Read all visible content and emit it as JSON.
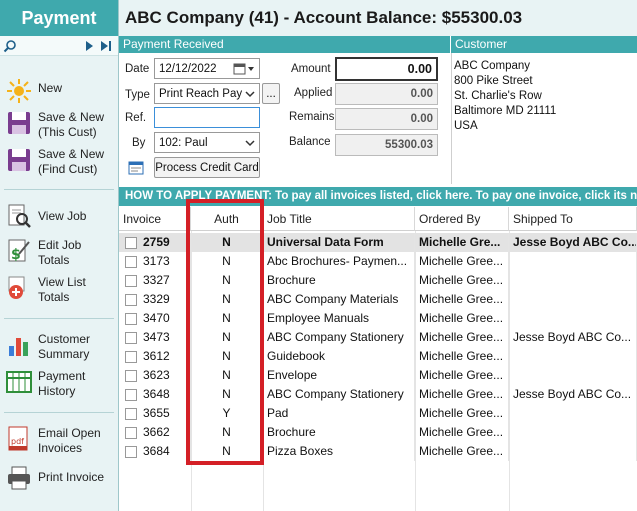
{
  "sidebar": {
    "title": "Payment",
    "items": [
      {
        "label": "New",
        "icon": "sun-new-icon"
      },
      {
        "label": "Save & New\n(This Cust)",
        "icon": "save-icon"
      },
      {
        "label": "Save & New\n(Find Cust)",
        "icon": "save-icon"
      },
      {
        "label": "View Job",
        "icon": "view-document-icon"
      },
      {
        "label": "Edit Job\nTotals",
        "icon": "edit-dollar-icon"
      },
      {
        "label": "View List\nTotals",
        "icon": "add-circle-icon"
      },
      {
        "label": "Customer\nSummary",
        "icon": "bar-chart-icon"
      },
      {
        "label": "Payment\nHistory",
        "icon": "grid-table-icon"
      },
      {
        "label": "Email Open\nInvoices",
        "icon": "pdf-email-icon"
      },
      {
        "label": "Print Invoice",
        "icon": "printer-icon"
      }
    ]
  },
  "header": {
    "title": "ABC Company (41) - Account Balance: $55300.03"
  },
  "payment": {
    "section_title": "Payment Received",
    "date_label": "Date",
    "date_value": "12/12/2022",
    "type_label": "Type",
    "type_value": "Print Reach Pay ·",
    "ellipsis": "...",
    "ref_label": "Ref.",
    "ref_value": "",
    "by_label": "By",
    "by_value": "102: Paul",
    "process_button": "Process Credit Card",
    "amount_label": "Amount",
    "amount_value": "0.00",
    "applied_label": "Applied",
    "applied_value": "0.00",
    "remains_label": "Remains",
    "remains_value": "0.00",
    "balance_label": "Balance",
    "balance_value": "55300.03"
  },
  "customer": {
    "section_title": "Customer",
    "name": "ABC Company",
    "street": "800 Pike Street",
    "street2": "St. Charlie's Row",
    "city": "Baltimore MD 21111",
    "country": "USA"
  },
  "apply_bar": {
    "text": "HOW TO APPLY PAYMENT: To pay all invoices listed, click here. To pay one invoice, click its nu"
  },
  "table": {
    "columns": [
      "Invoice",
      "Auth",
      "Job Title",
      "Ordered By",
      "Shipped To"
    ],
    "rows": [
      {
        "invoice": "2759",
        "auth": "N",
        "job": "Universal Data Form",
        "ordered": "Michelle Gre...",
        "shipped": "Jesse Boyd ABC Co..."
      },
      {
        "invoice": "3173",
        "auth": "N",
        "job": "Abc Brochures- Paymen...",
        "ordered": "Michelle Gree...",
        "shipped": ""
      },
      {
        "invoice": "3327",
        "auth": "N",
        "job": "Brochure",
        "ordered": "Michelle Gree...",
        "shipped": ""
      },
      {
        "invoice": "3329",
        "auth": "N",
        "job": "ABC Company Materials",
        "ordered": "Michelle Gree...",
        "shipped": ""
      },
      {
        "invoice": "3470",
        "auth": "N",
        "job": "Employee Manuals",
        "ordered": "Michelle Gree...",
        "shipped": ""
      },
      {
        "invoice": "3473",
        "auth": "N",
        "job": "ABC Company Stationery",
        "ordered": "Michelle Gree...",
        "shipped": "Jesse Boyd ABC Co..."
      },
      {
        "invoice": "3612",
        "auth": "N",
        "job": "Guidebook",
        "ordered": "Michelle Gree...",
        "shipped": ""
      },
      {
        "invoice": "3623",
        "auth": "N",
        "job": "Envelope",
        "ordered": "Michelle Gree...",
        "shipped": ""
      },
      {
        "invoice": "3648",
        "auth": "N",
        "job": "ABC Company Stationery",
        "ordered": "Michelle Gree...",
        "shipped": "Jesse Boyd ABC Co..."
      },
      {
        "invoice": "3655",
        "auth": "Y",
        "job": "Pad",
        "ordered": "Michelle Gree...",
        "shipped": ""
      },
      {
        "invoice": "3662",
        "auth": "N",
        "job": "Brochure",
        "ordered": "Michelle Gree...",
        "shipped": ""
      },
      {
        "invoice": "3684",
        "auth": "N",
        "job": "Pizza Boxes",
        "ordered": "Michelle Gree...",
        "shipped": ""
      }
    ]
  },
  "colors": {
    "accent": "#3fa9ad",
    "highlight": "#d41f26",
    "sidebar_bg": "#e8f3f4"
  }
}
